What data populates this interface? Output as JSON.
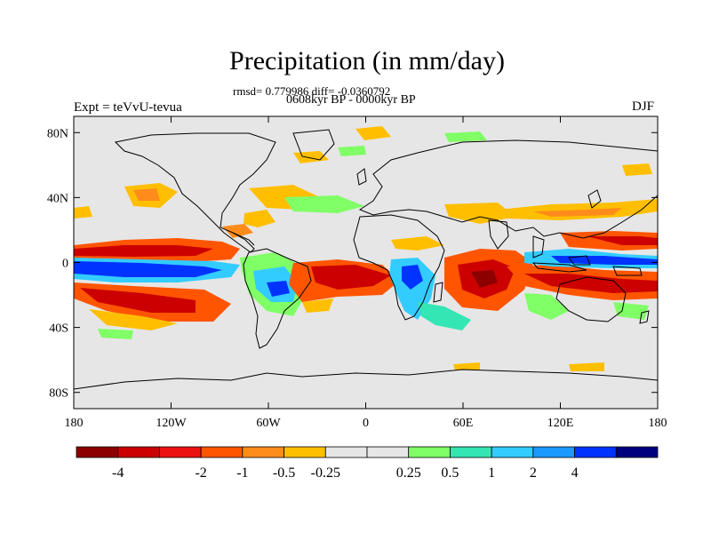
{
  "header": {
    "title": "Precipitation (in mm/day)",
    "stats": "rmsd= 0.779986 diff= -0.0360792",
    "period": "0608kyr BP - 0000kyr BP",
    "experiment": "Expt = teVvU-tevua",
    "season": "DJF"
  },
  "map": {
    "projection": "cylindrical equidistant",
    "lon_range": [
      -180,
      180
    ],
    "lat_range": [
      -90,
      90
    ],
    "x_ticks": [
      {
        "lon": -180,
        "label": "180"
      },
      {
        "lon": -120,
        "label": "120W"
      },
      {
        "lon": -60,
        "label": "60W"
      },
      {
        "lon": 0,
        "label": "0"
      },
      {
        "lon": 60,
        "label": "60E"
      },
      {
        "lon": 120,
        "label": "120E"
      },
      {
        "lon": 180,
        "label": "180"
      }
    ],
    "y_ticks": [
      {
        "lat": 80,
        "label": "80N"
      },
      {
        "lat": 40,
        "label": "40N"
      },
      {
        "lat": 0,
        "label": "0"
      },
      {
        "lat": -40,
        "label": "40S"
      },
      {
        "lat": -80,
        "label": "80S"
      }
    ],
    "background_color": "#e6e6e6",
    "coastline_color": "#000000"
  },
  "colorbar": {
    "colors": [
      "#8c0000",
      "#cc0000",
      "#ee1111",
      "#ff5500",
      "#ff8c1a",
      "#ffbf00",
      "#e6e6e6",
      "#e6e6e6",
      "#80ff66",
      "#33e6b3",
      "#33ccff",
      "#1a99ff",
      "#0033ff",
      "#00007f"
    ],
    "labels": [
      "-4",
      "-2",
      "-1",
      "-0.5",
      "-0.25",
      "0.25",
      "0.5",
      "1",
      "2",
      "4"
    ],
    "label_boundaries": [
      1,
      3,
      4,
      5,
      6,
      8,
      9,
      10,
      11,
      12
    ]
  }
}
